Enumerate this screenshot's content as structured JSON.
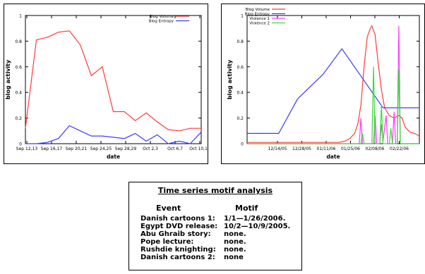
{
  "chart_data": [
    {
      "type": "line",
      "ylabel": "blog activity",
      "xlabel": "date",
      "ylim": [
        0,
        1
      ],
      "yticks": [
        "0",
        "0.2",
        "0.4",
        "0.6",
        "0.8",
        "1"
      ],
      "xticks": [
        "Sep 12,13",
        "Sep 16,17",
        "Sep 20,21",
        "Sep 24,25",
        "Sep 28,29",
        "Oct 2,3",
        "Oct 6,7",
        "Oct 10,11"
      ],
      "legend_position": "top-right",
      "series": [
        {
          "name": "Blog Volume",
          "color": "#ff3b3b",
          "values": [
            0.12,
            0.81,
            0.83,
            0.87,
            0.88,
            0.77,
            0.53,
            0.6,
            0.25,
            0.25,
            0.18,
            0.24,
            0.17,
            0.11,
            0.1,
            0.12,
            0.12
          ]
        },
        {
          "name": "Blog Entropy",
          "color": "#3b3bff",
          "values": [
            0.0,
            0.0,
            0.01,
            0.04,
            0.14,
            0.1,
            0.06,
            0.06,
            0.05,
            0.04,
            0.08,
            0.02,
            0.07,
            0.0,
            0.02,
            0.0,
            0.09
          ]
        }
      ]
    },
    {
      "type": "line",
      "ylabel": "blog activity",
      "xlabel": "date",
      "ylim": [
        0,
        1
      ],
      "yticks": [
        "0",
        "0.2",
        "0.4",
        "0.6",
        "0.8",
        "1"
      ],
      "xticks": [
        "12/14/05",
        "12/28/05",
        "01/11/06",
        "01/25/06",
        "02/08/06",
        "02/22/06"
      ],
      "legend_position": "top-left",
      "series": [
        {
          "name": "Blog Volume",
          "color": "#ff3b3b",
          "points": [
            [
              0,
              0.01
            ],
            [
              12,
              0.01
            ],
            [
              40,
              0.01
            ],
            [
              52,
              0.01
            ],
            [
              58,
              0.01
            ],
            [
              62,
              0.02
            ],
            [
              65,
              0.04
            ],
            [
              68,
              0.08
            ],
            [
              70,
              0.15
            ],
            [
              72,
              0.3
            ],
            [
              74,
              0.6
            ],
            [
              76,
              0.83
            ],
            [
              78,
              0.9
            ],
            [
              79,
              0.92
            ],
            [
              81,
              0.85
            ],
            [
              83,
              0.62
            ],
            [
              85,
              0.42
            ],
            [
              87,
              0.28
            ],
            [
              90,
              0.22
            ],
            [
              93,
              0.2
            ],
            [
              96,
              0.22
            ],
            [
              98,
              0.2
            ],
            [
              100,
              0.13
            ],
            [
              103,
              0.09
            ],
            [
              106,
              0.08
            ],
            [
              109,
              0.06
            ]
          ]
        },
        {
          "name": "Blog Entropy",
          "color": "#3b3bff",
          "points": [
            [
              0,
              0.08
            ],
            [
              20,
              0.08
            ],
            [
              32,
              0.35
            ],
            [
              48,
              0.54
            ],
            [
              60,
              0.74
            ],
            [
              86,
              0.28
            ],
            [
              109,
              0.28
            ]
          ]
        },
        {
          "name": "Violence 1",
          "color": "#ff3bff",
          "points": [
            [
              0,
              0
            ],
            [
              71,
              0
            ],
            [
              72,
              0.2
            ],
            [
              73,
              0
            ],
            [
              80,
              0
            ],
            [
              81,
              0.22
            ],
            [
              82,
              0
            ],
            [
              84,
              0
            ],
            [
              85,
              0.15
            ],
            [
              86,
              0.02
            ],
            [
              88,
              0.22
            ],
            [
              89,
              0
            ],
            [
              92,
              0
            ],
            [
              93,
              0.25
            ],
            [
              94,
              0
            ],
            [
              95,
              0
            ],
            [
              96,
              0.92
            ],
            [
              97,
              0
            ],
            [
              109,
              0
            ]
          ]
        },
        {
          "name": "Violence 2",
          "color": "#33dd33",
          "points": [
            [
              0,
              0
            ],
            [
              72,
              0
            ],
            [
              73,
              0.08
            ],
            [
              74,
              0
            ],
            [
              79,
              0
            ],
            [
              80,
              0.6
            ],
            [
              81,
              0
            ],
            [
              84,
              0
            ],
            [
              85,
              0.3
            ],
            [
              86,
              0
            ],
            [
              90,
              0
            ],
            [
              91,
              0.12
            ],
            [
              92,
              0
            ],
            [
              95,
              0
            ],
            [
              96,
              0.58
            ],
            [
              97,
              0
            ],
            [
              109,
              0
            ]
          ]
        }
      ]
    }
  ],
  "motif": {
    "title": "Time series motif analysis",
    "col_event": "Event",
    "col_motif": "Motif",
    "rows": [
      {
        "event": "Danish cartoons 1:",
        "motif": "1/1—1/26/2006."
      },
      {
        "event": "Egypt DVD release:",
        "motif": "10/2—10/9/2005."
      },
      {
        "event": "Abu Ghraib story:",
        "motif": "none."
      },
      {
        "event": "Pope lecture:",
        "motif": "none."
      },
      {
        "event": "Rushdie knighting:",
        "motif": "none."
      },
      {
        "event": "Danish cartoons 2:",
        "motif": "none"
      }
    ]
  }
}
